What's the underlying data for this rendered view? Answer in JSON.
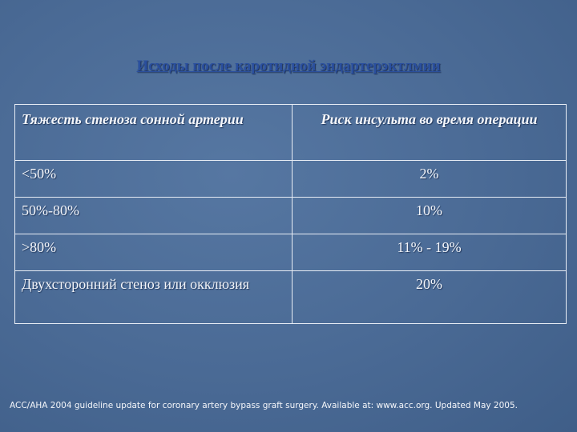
{
  "title": "Исходы после каротидной эндартерэктлмии",
  "table": {
    "header": [
      "Тяжесть стеноза сонной артерии",
      "Риск инсульта во время операции"
    ],
    "rows": [
      [
        "<50%",
        "2%"
      ],
      [
        "50%-80%",
        "10%"
      ],
      [
        ">80%",
        "11% - 19%"
      ],
      [
        "Двухсторонний стеноз или окклюзия",
        "20%"
      ]
    ]
  },
  "footnote": "ACC/AHA 2004 guideline update for coronary artery bypass graft surgery. Available at: www.acc.org. Updated May 2005."
}
